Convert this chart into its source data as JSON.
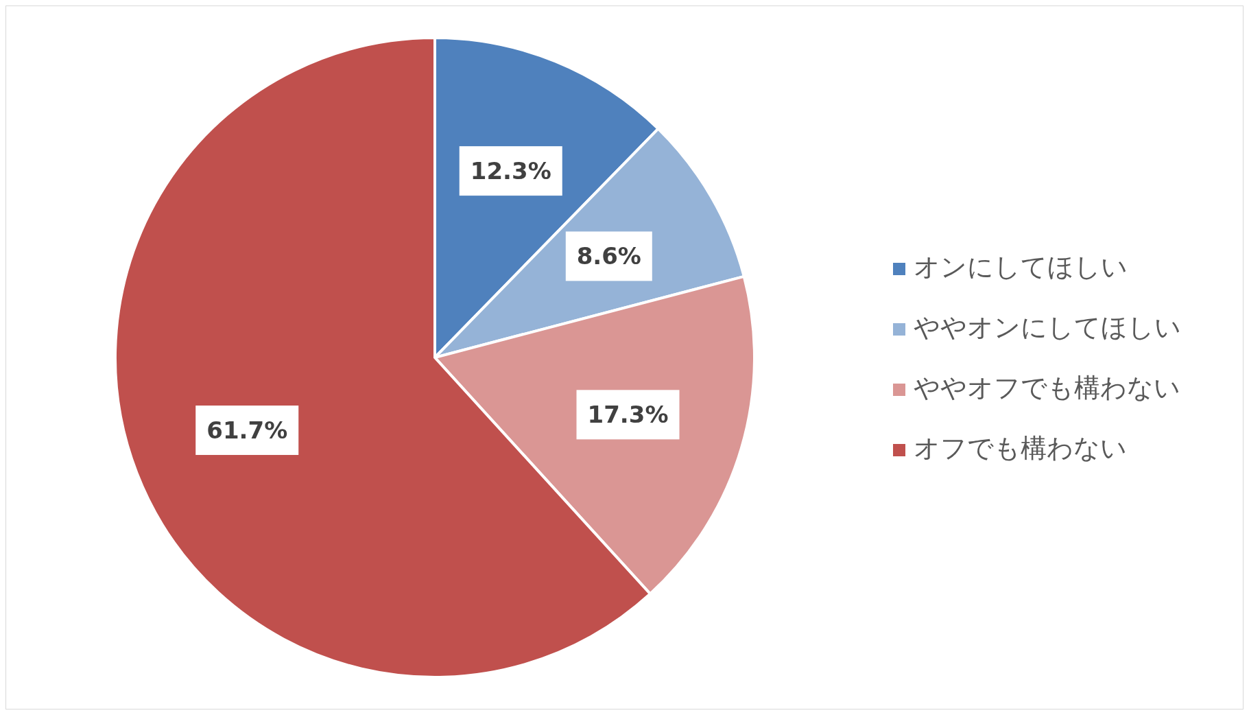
{
  "chart_data": {
    "type": "pie",
    "categories": [
      "オンにしてほしい",
      "ややオンにしてほしい",
      "ややオフでも構わない",
      "オフでも構わない"
    ],
    "values": [
      12.3,
      8.6,
      17.3,
      61.7
    ],
    "value_labels": [
      "12.3%",
      "8.6%",
      "17.3%",
      "61.7%"
    ],
    "colors": [
      "#4f81bd",
      "#95b3d7",
      "#da9694",
      "#c0504d"
    ],
    "legend": "right"
  }
}
